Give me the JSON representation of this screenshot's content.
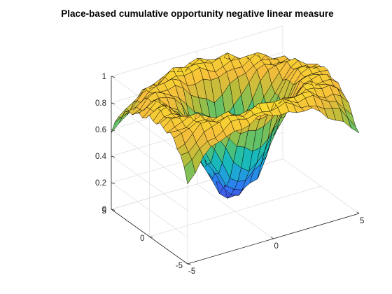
{
  "chart_data": {
    "type": "surface",
    "title": "Place-based cumulative opportunity negative linear measure",
    "xlabel": "",
    "ylabel": "",
    "zlabel": "",
    "xlim": [
      -5,
      5
    ],
    "ylim": [
      -5,
      5
    ],
    "zlim": [
      0,
      1
    ],
    "x_ticks": [
      -5,
      0,
      5
    ],
    "y_ticks": [
      -5,
      0,
      5
    ],
    "z_ticks": [
      0,
      0.2,
      0.4,
      0.6,
      0.8,
      1
    ],
    "x_tick_labels": [
      "-5",
      "0",
      "5"
    ],
    "y_tick_labels": [
      "-5",
      "0",
      "5"
    ],
    "z_tick_labels": [
      "0",
      "0.2",
      "0.4",
      "0.6",
      "0.8",
      "1"
    ],
    "grid": true,
    "colormap": [
      "#3e26a8",
      "#4751e5",
      "#2e7bf2",
      "#1fa5d6",
      "#18bdb5",
      "#56c26f",
      "#b3bd3a",
      "#f5bd3c",
      "#f8e22a"
    ],
    "surface_shape": "ring-shaped plateau near 0.8-1 on the outer region, dropping to a deep central well near 0.1-0.2 around (0,0) with a broad dip on the near side",
    "x": [
      -5,
      -4,
      -3,
      -2,
      -1,
      0,
      1,
      2,
      3,
      4,
      5
    ],
    "y": [
      -5,
      -4,
      -3,
      -2,
      -1,
      0,
      1,
      2,
      3,
      4,
      5
    ],
    "z": [
      [
        0.62,
        0.76,
        0.88,
        0.9,
        0.92,
        0.95,
        0.91,
        0.88,
        0.84,
        0.72,
        0.6
      ],
      [
        0.78,
        0.88,
        0.94,
        0.96,
        0.98,
        0.98,
        0.97,
        0.95,
        0.9,
        0.86,
        0.74
      ],
      [
        0.86,
        0.93,
        0.96,
        0.92,
        0.85,
        0.8,
        0.86,
        0.93,
        0.96,
        0.92,
        0.84
      ],
      [
        0.88,
        0.95,
        0.9,
        0.75,
        0.55,
        0.42,
        0.56,
        0.76,
        0.91,
        0.95,
        0.86
      ],
      [
        0.9,
        0.94,
        0.84,
        0.55,
        0.28,
        0.18,
        0.3,
        0.58,
        0.85,
        0.96,
        0.88
      ],
      [
        0.91,
        0.95,
        0.8,
        0.45,
        0.18,
        0.12,
        0.22,
        0.48,
        0.82,
        0.95,
        0.9
      ],
      [
        0.88,
        0.93,
        0.84,
        0.56,
        0.3,
        0.22,
        0.32,
        0.58,
        0.84,
        0.94,
        0.86
      ],
      [
        0.85,
        0.91,
        0.92,
        0.78,
        0.58,
        0.48,
        0.6,
        0.8,
        0.92,
        0.9,
        0.82
      ],
      [
        0.8,
        0.88,
        0.95,
        0.92,
        0.86,
        0.82,
        0.86,
        0.93,
        0.94,
        0.87,
        0.76
      ],
      [
        0.72,
        0.84,
        0.9,
        0.95,
        0.97,
        0.96,
        0.95,
        0.93,
        0.88,
        0.8,
        0.68
      ],
      [
        0.58,
        0.7,
        0.82,
        0.88,
        0.9,
        0.92,
        0.9,
        0.86,
        0.78,
        0.66,
        0.55
      ]
    ]
  }
}
